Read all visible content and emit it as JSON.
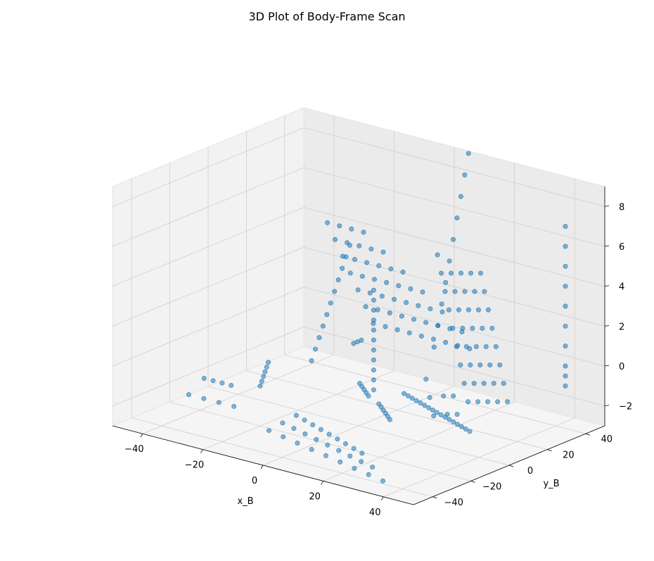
{
  "chart_data": {
    "type": "scatter",
    "projection": "3d",
    "title": "3D Plot of Body-Frame Scan",
    "xlabel": "x_B",
    "ylabel": "y_B",
    "zlabel": "",
    "xlim": [
      -50,
      50
    ],
    "ylim": [
      -50,
      50
    ],
    "zlim": [
      -3,
      9
    ],
    "xticks": [
      -40,
      -20,
      0,
      20,
      40
    ],
    "yticks": [
      -40,
      -20,
      0,
      20,
      40
    ],
    "zticks": [
      -2,
      0,
      2,
      4,
      6,
      8
    ],
    "grid": true,
    "legend": false,
    "marker_color": "#1f77b4",
    "series": [
      {
        "name": "",
        "description": "LiDAR scan points in body frame: concentric ground rings near origin plus vertical wall/pole columns",
        "x": [
          -45,
          -42,
          -39,
          -36,
          -45,
          -40,
          -35,
          -30,
          -30,
          -28,
          -26,
          -24,
          -22,
          -20,
          -22,
          -22,
          -22,
          -22,
          -22,
          -22,
          -22,
          -22,
          -22,
          -22,
          -22,
          -22,
          -22,
          -22,
          -18,
          -14,
          -10,
          -6,
          -2,
          2,
          6,
          10,
          14,
          -18,
          -14,
          -10,
          -6,
          -2,
          2,
          6,
          10,
          14,
          -18,
          -14,
          -10,
          -6,
          -2,
          2,
          6,
          10,
          -18,
          -14,
          -10,
          -6,
          -2,
          2,
          6,
          -18,
          -14,
          -10,
          -6,
          -2,
          2,
          -18,
          -14,
          -10,
          -6,
          -2,
          -18,
          -14,
          -10,
          -6,
          5,
          5,
          5,
          5,
          5,
          5,
          5,
          5,
          5,
          5,
          5,
          2,
          0,
          -2,
          -4,
          -6,
          8,
          10,
          12,
          14,
          16,
          18,
          -8,
          -4,
          0,
          4,
          8,
          12,
          16,
          20,
          24,
          -10,
          -5,
          0,
          5,
          10,
          15,
          20,
          25,
          30,
          -12,
          -6,
          0,
          6,
          12,
          18,
          24,
          30,
          36,
          10,
          12,
          14,
          16,
          18,
          20,
          22,
          24,
          26,
          28,
          30,
          32,
          34,
          36,
          38,
          40,
          42,
          6,
          6,
          6,
          6,
          6,
          6,
          6,
          6,
          6,
          6,
          30,
          30,
          30,
          30,
          30,
          30,
          30,
          30,
          30,
          30,
          30,
          30,
          32,
          32,
          32,
          32,
          32,
          32,
          32,
          32,
          32,
          32,
          34,
          34,
          34,
          34,
          34,
          34,
          34,
          34,
          34,
          34,
          36,
          36,
          36,
          36,
          36,
          36,
          36,
          36,
          38,
          38,
          38,
          38,
          38,
          38,
          38,
          38,
          42,
          42,
          42,
          42,
          42,
          42,
          42,
          42,
          42,
          42
        ],
        "y": [
          -10,
          -10,
          -10,
          -10,
          -18,
          -18,
          -18,
          -18,
          0,
          -4,
          -8,
          -12,
          -16,
          -20,
          10,
          12,
          14,
          16,
          18,
          20,
          22,
          24,
          26,
          28,
          30,
          32,
          34,
          36,
          36,
          36,
          36,
          36,
          36,
          36,
          36,
          36,
          36,
          32,
          32,
          32,
          32,
          32,
          32,
          32,
          32,
          32,
          28,
          28,
          28,
          28,
          28,
          28,
          28,
          28,
          24,
          24,
          24,
          24,
          24,
          24,
          24,
          20,
          20,
          20,
          20,
          20,
          20,
          16,
          16,
          16,
          16,
          16,
          12,
          12,
          12,
          12,
          0,
          0,
          0,
          0,
          0,
          0,
          0,
          0,
          0,
          0,
          0,
          2,
          4,
          6,
          8,
          10,
          -2,
          -4,
          -6,
          -8,
          -10,
          -12,
          -20,
          -22,
          -24,
          -26,
          -28,
          -30,
          -32,
          -34,
          -36,
          -24,
          -26,
          -28,
          -30,
          -32,
          -34,
          -36,
          -38,
          -40,
          -28,
          -30,
          -32,
          -34,
          -36,
          -38,
          -40,
          -42,
          -44,
          8,
          7,
          6,
          5,
          4,
          3,
          2,
          1,
          0,
          -1,
          -2,
          -3,
          -4,
          -5,
          -6,
          -7,
          -8,
          30,
          32,
          34,
          36,
          38,
          40,
          42,
          44,
          46,
          48,
          10,
          8,
          6,
          4,
          2,
          0,
          -2,
          -4,
          -6,
          -8,
          -10,
          -12,
          12,
          10,
          8,
          6,
          4,
          2,
          0,
          -2,
          -4,
          -6,
          14,
          12,
          10,
          8,
          6,
          4,
          2,
          0,
          -2,
          -4,
          16,
          14,
          12,
          10,
          8,
          6,
          4,
          2,
          18,
          16,
          14,
          12,
          10,
          8,
          6,
          4,
          42,
          42,
          42,
          42,
          42,
          42,
          42,
          42,
          42,
          42
        ],
        "z": [
          -2,
          -2,
          -2,
          -2,
          -2.5,
          -2.5,
          -2.5,
          -2.5,
          -1,
          -1,
          -1,
          -1,
          -1,
          -1,
          -1,
          -0.5,
          0,
          0.5,
          1,
          1.5,
          2,
          2.5,
          3,
          3.5,
          4,
          -1,
          -1,
          -1,
          0,
          0,
          0,
          0,
          0,
          0,
          0,
          0,
          0,
          1,
          1,
          1,
          1,
          1,
          1,
          1,
          1,
          1,
          2,
          2,
          2,
          2,
          2,
          2,
          2,
          2,
          3,
          3,
          3,
          3,
          3,
          3,
          3,
          4,
          4,
          4,
          4,
          4,
          4,
          5,
          5,
          5,
          5,
          5,
          6,
          6,
          6,
          6,
          -1,
          -0.5,
          0,
          0.5,
          1,
          1.5,
          2,
          2.5,
          3,
          3.5,
          4,
          -1.5,
          -1.5,
          -1.5,
          -1.5,
          -1.5,
          -1.5,
          -1.5,
          -1.5,
          -1.5,
          -1.5,
          -1.5,
          -2,
          -2,
          -2,
          -2,
          -2,
          -2,
          -2,
          -2,
          -2,
          -2.3,
          -2.3,
          -2.3,
          -2.3,
          -2.3,
          -2.3,
          -2.3,
          -2.3,
          -2.3,
          -2.6,
          -2.6,
          -2.6,
          -2.6,
          -2.6,
          -2.6,
          -2.6,
          -2.6,
          -2.6,
          -1.3,
          -1.3,
          -1.3,
          -1.3,
          -1.3,
          -1.3,
          -1.3,
          -1.3,
          -1.3,
          -1.3,
          -1.3,
          -1.3,
          -1.3,
          -1.3,
          -1.3,
          -1.3,
          -1.3,
          0,
          1,
          2,
          3,
          4,
          5,
          6,
          7,
          8,
          9,
          -1,
          0,
          1,
          2,
          3,
          4,
          5,
          6,
          7,
          -1,
          0,
          1,
          -1,
          0,
          1,
          2,
          3,
          4,
          5,
          6,
          -1,
          0,
          -1,
          0,
          1,
          2,
          3,
          4,
          5,
          6,
          -1,
          0,
          -1,
          0,
          1,
          2,
          3,
          4,
          5,
          6,
          -1,
          0,
          1,
          2,
          3,
          4,
          5,
          6,
          -1,
          -0.5,
          0,
          1,
          2,
          3,
          4,
          5,
          6,
          7
        ]
      }
    ]
  }
}
